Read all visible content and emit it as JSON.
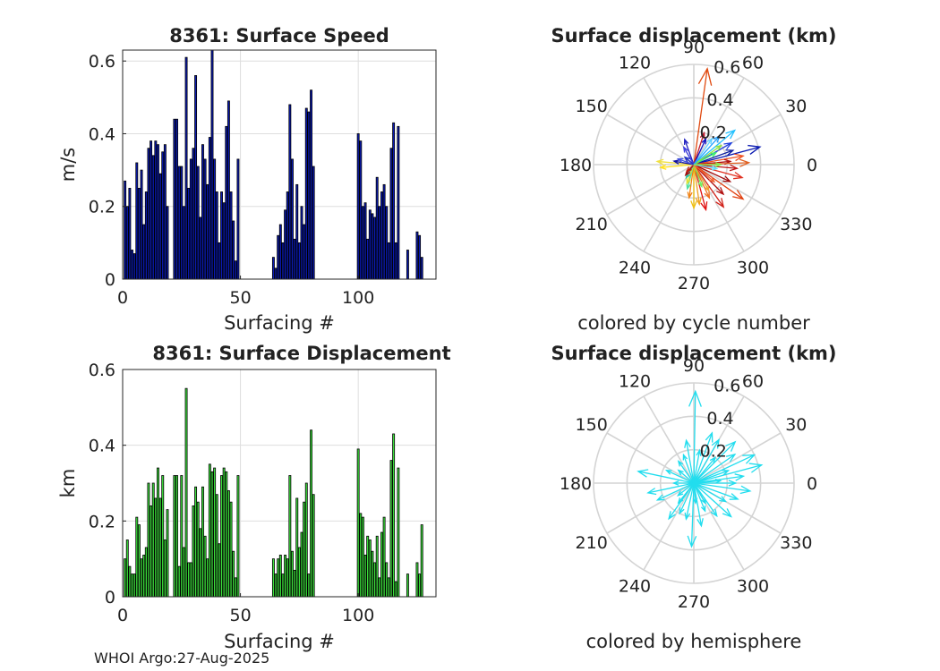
{
  "footer": "WHOI Argo:27-Aug-2025",
  "chart_data": [
    {
      "type": "bar",
      "title": "8361: Surface Speed",
      "xlabel": "Surfacing #",
      "ylabel": "m/s",
      "xlim": [
        0,
        133
      ],
      "ylim": [
        0,
        0.63
      ],
      "xticks": [
        "0",
        "50",
        "100"
      ],
      "yticks": [
        "0",
        "0.2",
        "0.4",
        "0.6"
      ],
      "grid": true,
      "color": "#0a1ab4",
      "x": [
        1,
        2,
        3,
        4,
        5,
        6,
        7,
        8,
        9,
        10,
        11,
        12,
        13,
        14,
        15,
        16,
        17,
        18,
        19,
        22,
        23,
        24,
        25,
        26,
        27,
        28,
        29,
        30,
        31,
        32,
        33,
        34,
        35,
        36,
        37,
        38,
        39,
        40,
        41,
        42,
        43,
        44,
        45,
        46,
        47,
        48,
        49,
        51,
        64,
        65,
        66,
        67,
        68,
        69,
        70,
        71,
        72,
        73,
        74,
        75,
        76,
        77,
        78,
        79,
        80,
        81,
        100,
        101,
        102,
        103,
        104,
        105,
        106,
        107,
        108,
        109,
        110,
        111,
        112,
        113,
        114,
        115,
        116,
        117,
        121,
        125,
        126,
        127
      ],
      "values": [
        0.27,
        0.2,
        0.25,
        0.08,
        0.07,
        0.32,
        0.25,
        0.3,
        0.15,
        0.24,
        0.36,
        0.38,
        0.34,
        0.38,
        0.37,
        0.29,
        0.35,
        0.37,
        0.2,
        0.44,
        0.44,
        0.31,
        0.31,
        0.2,
        0.61,
        0.25,
        0.33,
        0.36,
        0.56,
        0.31,
        0.17,
        0.37,
        0.33,
        0.26,
        0.39,
        0.63,
        0.33,
        0.24,
        0.1,
        0.24,
        0.21,
        0.42,
        0.49,
        0.24,
        0.16,
        0.05,
        0.33,
        0.0,
        0.06,
        0.03,
        0.12,
        0.15,
        0.1,
        0.19,
        0.24,
        0.48,
        0.33,
        0.11,
        0.26,
        0.1,
        0.2,
        0.15,
        0.47,
        0.46,
        0.52,
        0.31,
        0.4,
        0.38,
        0.2,
        0.21,
        0.11,
        0.19,
        0.18,
        0.17,
        0.28,
        0.2,
        0.24,
        0.26,
        0.2,
        0.1,
        0.36,
        0.43,
        0.1,
        0.42,
        0.08,
        0.13,
        0.12,
        0.06
      ]
    },
    {
      "type": "polar-quiver",
      "title": "Surface displacement (km)",
      "caption": "colored by cycle number",
      "angle_labels": [
        "0",
        "30",
        "60",
        "90",
        "120",
        "150",
        "180",
        "210",
        "240",
        "270",
        "300",
        "330"
      ],
      "radial_labels": [
        "0.2",
        "0.4",
        "0.6"
      ],
      "rmax": 0.6,
      "arrows": [
        {
          "angle": 82,
          "r": 0.58,
          "color": "#e04a10"
        },
        {
          "angle": 72,
          "r": 0.2,
          "color": "#c01c30"
        },
        {
          "angle": 65,
          "r": 0.17,
          "color": "#1010c0"
        },
        {
          "angle": 110,
          "r": 0.16,
          "color": "#2020c0"
        },
        {
          "angle": 120,
          "r": 0.12,
          "color": "#4040e0"
        },
        {
          "angle": 55,
          "r": 0.19,
          "color": "#60d0ff"
        },
        {
          "angle": 40,
          "r": 0.32,
          "color": "#20c0ff"
        },
        {
          "angle": 30,
          "r": 0.26,
          "color": "#2040e0"
        },
        {
          "angle": 20,
          "r": 0.25,
          "color": "#1020a0"
        },
        {
          "angle": 15,
          "r": 0.41,
          "color": "#0818b0"
        },
        {
          "angle": 10,
          "r": 0.3,
          "color": "#f05020"
        },
        {
          "angle": 5,
          "r": 0.22,
          "color": "#b01010"
        },
        {
          "angle": 2,
          "r": 0.33,
          "color": "#e06020"
        },
        {
          "angle": 355,
          "r": 0.26,
          "color": "#c01818"
        },
        {
          "angle": 345,
          "r": 0.3,
          "color": "#e03020"
        },
        {
          "angle": 335,
          "r": 0.24,
          "color": "#a00808"
        },
        {
          "angle": 325,
          "r": 0.36,
          "color": "#e04010"
        },
        {
          "angle": 315,
          "r": 0.25,
          "color": "#b01010"
        },
        {
          "angle": 305,
          "r": 0.31,
          "color": "#d02018"
        },
        {
          "angle": 295,
          "r": 0.22,
          "color": "#f07020"
        },
        {
          "angle": 285,
          "r": 0.28,
          "color": "#e01010"
        },
        {
          "angle": 278,
          "r": 0.24,
          "color": "#f0a020"
        },
        {
          "angle": 270,
          "r": 0.26,
          "color": "#f0c010"
        },
        {
          "angle": 262,
          "r": 0.2,
          "color": "#f08010"
        },
        {
          "angle": 255,
          "r": 0.15,
          "color": "#50e0a0"
        },
        {
          "angle": 250,
          "r": 0.12,
          "color": "#e0e030"
        },
        {
          "angle": 240,
          "r": 0.09,
          "color": "#30c0a0"
        },
        {
          "angle": 232,
          "r": 0.08,
          "color": "#a01010"
        },
        {
          "angle": 225,
          "r": 0.06,
          "color": "#c02010"
        },
        {
          "angle": 185,
          "r": 0.2,
          "color": "#ffe020"
        },
        {
          "angle": 175,
          "r": 0.22,
          "color": "#f0e040"
        },
        {
          "angle": 170,
          "r": 0.12,
          "color": "#1010a0"
        },
        {
          "angle": 160,
          "r": 0.1,
          "color": "#4050e0"
        },
        {
          "angle": 140,
          "r": 0.07,
          "color": "#2030c0"
        },
        {
          "angle": 28,
          "r": 0.15,
          "color": "#40f070"
        },
        {
          "angle": 35,
          "r": 0.2,
          "color": "#90e040"
        },
        {
          "angle": 48,
          "r": 0.23,
          "color": "#20a0ff"
        },
        {
          "angle": 290,
          "r": 0.14,
          "color": "#70f060"
        },
        {
          "angle": 300,
          "r": 0.18,
          "color": "#f0a030"
        },
        {
          "angle": 320,
          "r": 0.16,
          "color": "#f06030"
        },
        {
          "angle": 350,
          "r": 0.14,
          "color": "#60e0ff"
        },
        {
          "angle": 0,
          "r": 0.16,
          "color": "#80f050"
        }
      ]
    },
    {
      "type": "bar",
      "title": "8361: Surface Displacement",
      "xlabel": "Surfacing #",
      "ylabel": "km",
      "xlim": [
        0,
        133
      ],
      "ylim": [
        0,
        0.6
      ],
      "xticks": [
        "0",
        "50",
        "100"
      ],
      "yticks": [
        "0",
        "0.2",
        "0.4",
        "0.6"
      ],
      "grid": true,
      "color": "#3ce03c",
      "x": [
        1,
        2,
        3,
        4,
        5,
        6,
        7,
        8,
        9,
        10,
        11,
        12,
        13,
        14,
        15,
        16,
        17,
        18,
        19,
        22,
        23,
        24,
        25,
        26,
        27,
        28,
        29,
        30,
        31,
        32,
        33,
        34,
        35,
        36,
        37,
        38,
        39,
        40,
        41,
        42,
        43,
        44,
        45,
        46,
        47,
        48,
        49,
        51,
        64,
        65,
        66,
        67,
        68,
        69,
        70,
        71,
        72,
        73,
        74,
        75,
        76,
        77,
        78,
        79,
        80,
        81,
        100,
        101,
        102,
        103,
        104,
        105,
        106,
        107,
        108,
        109,
        110,
        111,
        112,
        113,
        114,
        115,
        116,
        117,
        121,
        125,
        126,
        127
      ],
      "values": [
        0.1,
        0.15,
        0.08,
        0.06,
        0.06,
        0.21,
        0.19,
        0.1,
        0.11,
        0.13,
        0.3,
        0.24,
        0.3,
        0.26,
        0.34,
        0.26,
        0.32,
        0.15,
        0.23,
        0.32,
        0.32,
        0.08,
        0.32,
        0.13,
        0.55,
        0.09,
        0.09,
        0.24,
        0.29,
        0.25,
        0.18,
        0.29,
        0.16,
        0.1,
        0.35,
        0.33,
        0.34,
        0.27,
        0.14,
        0.32,
        0.34,
        0.33,
        0.28,
        0.25,
        0.12,
        0.05,
        0.32,
        0.0,
        0.1,
        0.06,
        0.1,
        0.11,
        0.06,
        0.11,
        0.1,
        0.32,
        0.12,
        0.07,
        0.26,
        0.13,
        0.17,
        0.25,
        0.3,
        0.06,
        0.44,
        0.27,
        0.39,
        0.22,
        0.21,
        0.11,
        0.16,
        0.15,
        0.12,
        0.09,
        0.16,
        0.05,
        0.17,
        0.21,
        0.09,
        0.05,
        0.36,
        0.43,
        0.04,
        0.34,
        0.06,
        0.09,
        0.06,
        0.19
      ]
    },
    {
      "type": "polar-quiver",
      "title": "Surface displacement (km)",
      "caption": "colored by hemisphere",
      "angle_labels": [
        "0",
        "30",
        "60",
        "90",
        "120",
        "150",
        "180",
        "210",
        "240",
        "270",
        "300",
        "330"
      ],
      "radial_labels": [
        "0.2",
        "0.4",
        "0.6"
      ],
      "rmax": 0.6,
      "arrows": [
        {
          "angle": 89,
          "r": 0.55,
          "color": "#22ddee"
        },
        {
          "angle": 80,
          "r": 0.2,
          "color": "#22ddee"
        },
        {
          "angle": 70,
          "r": 0.32,
          "color": "#22ddee"
        },
        {
          "angle": 60,
          "r": 0.3,
          "color": "#22ddee"
        },
        {
          "angle": 45,
          "r": 0.35,
          "color": "#22ddee"
        },
        {
          "angle": 35,
          "r": 0.3,
          "color": "#22ddee"
        },
        {
          "angle": 25,
          "r": 0.4,
          "color": "#22ddee"
        },
        {
          "angle": 15,
          "r": 0.42,
          "color": "#22ddee"
        },
        {
          "angle": 8,
          "r": 0.3,
          "color": "#22ddee"
        },
        {
          "angle": 0,
          "r": 0.25,
          "color": "#22ddee"
        },
        {
          "angle": 352,
          "r": 0.34,
          "color": "#22ddee"
        },
        {
          "angle": 340,
          "r": 0.28,
          "color": "#22ddee"
        },
        {
          "angle": 330,
          "r": 0.22,
          "color": "#22ddee"
        },
        {
          "angle": 318,
          "r": 0.3,
          "color": "#22ddee"
        },
        {
          "angle": 305,
          "r": 0.24,
          "color": "#22ddee"
        },
        {
          "angle": 292,
          "r": 0.18,
          "color": "#22ddee"
        },
        {
          "angle": 280,
          "r": 0.26,
          "color": "#22ddee"
        },
        {
          "angle": 268,
          "r": 0.38,
          "color": "#22ddee"
        },
        {
          "angle": 258,
          "r": 0.22,
          "color": "#22ddee"
        },
        {
          "angle": 245,
          "r": 0.2,
          "color": "#22ddee"
        },
        {
          "angle": 232,
          "r": 0.15,
          "color": "#22ddee"
        },
        {
          "angle": 218,
          "r": 0.12,
          "color": "#22ddee"
        },
        {
          "angle": 205,
          "r": 0.24,
          "color": "#22ddee"
        },
        {
          "angle": 192,
          "r": 0.28,
          "color": "#22ddee"
        },
        {
          "angle": 180,
          "r": 0.12,
          "color": "#22ddee"
        },
        {
          "angle": 168,
          "r": 0.34,
          "color": "#22ddee"
        },
        {
          "angle": 155,
          "r": 0.18,
          "color": "#22ddee"
        },
        {
          "angle": 140,
          "r": 0.12,
          "color": "#22ddee"
        },
        {
          "angle": 125,
          "r": 0.16,
          "color": "#22ddee"
        },
        {
          "angle": 110,
          "r": 0.18,
          "color": "#22ddee"
        },
        {
          "angle": 100,
          "r": 0.26,
          "color": "#22ddee"
        },
        {
          "angle": 50,
          "r": 0.2,
          "color": "#22ddee"
        },
        {
          "angle": 20,
          "r": 0.22,
          "color": "#22ddee"
        },
        {
          "angle": 300,
          "r": 0.14,
          "color": "#22ddee"
        },
        {
          "angle": 275,
          "r": 0.12,
          "color": "#22ddee"
        },
        {
          "angle": 235,
          "r": 0.26,
          "color": "#22ddee"
        },
        {
          "angle": 5,
          "r": 0.16,
          "color": "#22ddee"
        }
      ]
    }
  ]
}
